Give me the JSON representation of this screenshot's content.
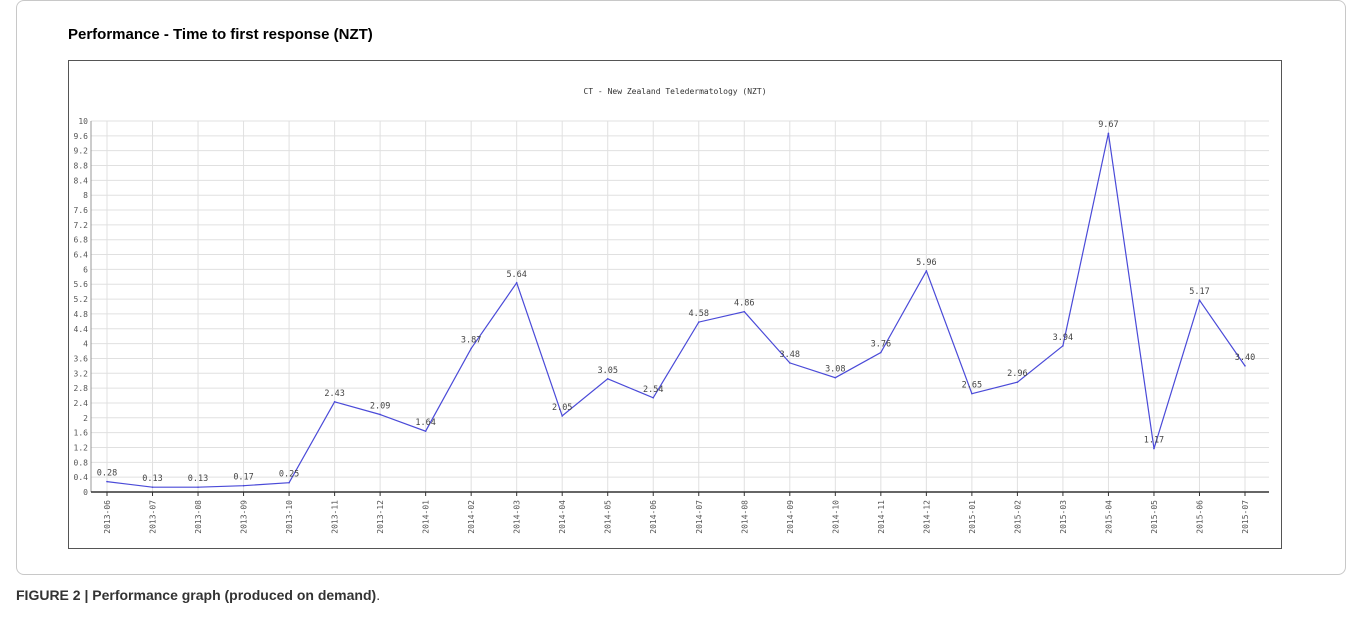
{
  "panel": {
    "title": "Performance - Time to first response (NZT)"
  },
  "caption": {
    "label": "FIGURE 2 | Performance graph (produced on demand)",
    "trailing": "."
  },
  "colors": {
    "line": "#4a4ad8",
    "grid": "#e0e0e0",
    "axis": "#333333",
    "text": "#555555"
  },
  "chart_data": {
    "type": "line",
    "title": "CT - New Zealand Teledermatology (NZT)",
    "xlabel": "",
    "ylabel": "",
    "ylim": [
      0,
      10
    ],
    "yticks": [
      "0",
      "0.4",
      "0.8",
      "1.2",
      "1.6",
      "2",
      "2.4",
      "2.8",
      "3.2",
      "3.6",
      "4",
      "4.4",
      "4.8",
      "5.2",
      "5.6",
      "6",
      "6.4",
      "6.8",
      "7.2",
      "7.6",
      "8",
      "8.4",
      "8.8",
      "9.2",
      "9.6",
      "10"
    ],
    "grid": true,
    "categories": [
      "2013-06",
      "2013-07",
      "2013-08",
      "2013-09",
      "2013-10",
      "2013-11",
      "2013-12",
      "2014-01",
      "2014-02",
      "2014-03",
      "2014-04",
      "2014-05",
      "2014-06",
      "2014-07",
      "2014-08",
      "2014-09",
      "2014-10",
      "2014-11",
      "2014-12",
      "2015-01",
      "2015-02",
      "2015-03",
      "2015-04",
      "2015-05",
      "2015-06",
      "2015-07"
    ],
    "values": [
      0.28,
      0.13,
      0.13,
      0.17,
      0.25,
      2.43,
      2.09,
      1.64,
      3.87,
      5.64,
      2.05,
      3.05,
      2.54,
      4.58,
      4.86,
      3.48,
      3.08,
      3.76,
      5.96,
      2.65,
      2.96,
      3.94,
      9.67,
      1.17,
      5.17,
      3.4
    ],
    "value_labels": [
      "0.28",
      "0.13",
      "0.13",
      "0.17",
      "0.25",
      "2.43",
      "2.09",
      "1.64",
      "3.87",
      "5.64",
      "2.05",
      "3.05",
      "2.54",
      "4.58",
      "4.86",
      "3.48",
      "3.08",
      "3.76",
      "5.96",
      "2.65",
      "2.96",
      "3.94",
      "9.67",
      "1.17",
      "5.17",
      "3.40"
    ]
  }
}
